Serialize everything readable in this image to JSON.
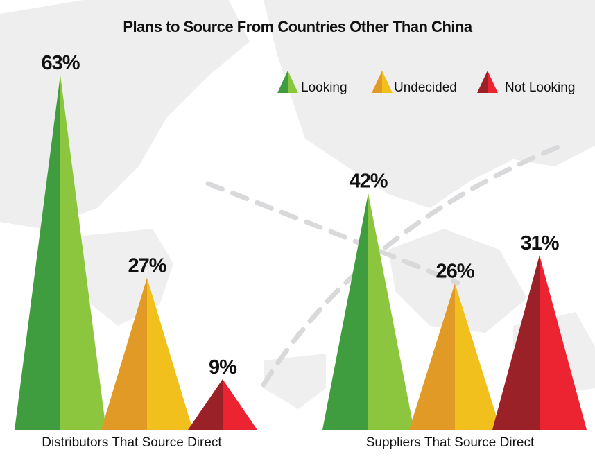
{
  "chart_data": {
    "type": "bar",
    "title": "Plans to Source From Countries Other Than China",
    "categories": [
      "Distributors That Source Direct",
      "Suppliers That Source Direct"
    ],
    "series": [
      {
        "name": "Looking",
        "values": [
          63,
          42
        ],
        "color_dark": "#3f9c3f",
        "color_light": "#8cc63f"
      },
      {
        "name": "Undecided",
        "values": [
          27,
          26
        ],
        "color_dark": "#e29a26",
        "color_light": "#f2c01c"
      },
      {
        "name": "Not Looking",
        "values": [
          9,
          31
        ],
        "color_dark": "#9a2127",
        "color_light": "#ec2330"
      }
    ],
    "value_suffix": "%",
    "ylim": [
      0,
      63
    ],
    "legend_position": "top-right",
    "grid": false
  }
}
